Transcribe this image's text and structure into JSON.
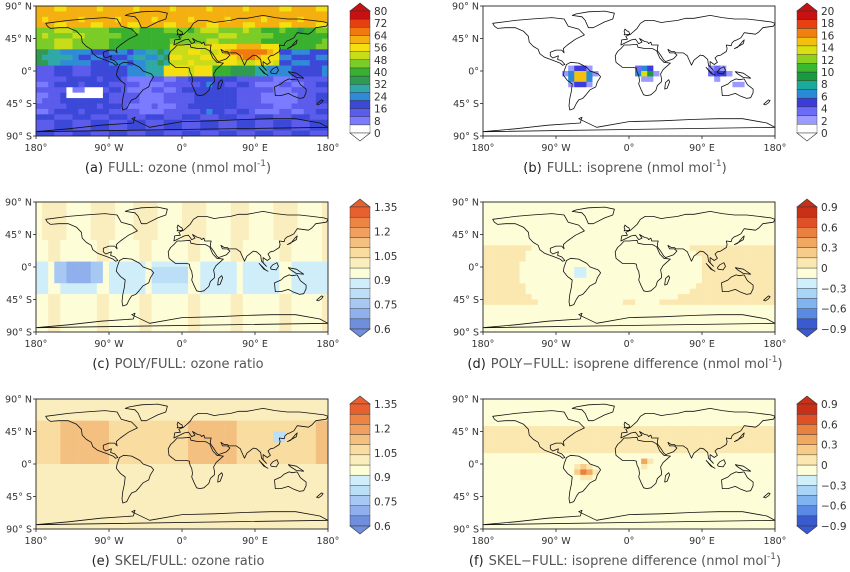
{
  "axes": {
    "lat_ticks": [
      "90° N",
      "45° N",
      "0°",
      "45° S",
      "90° S"
    ],
    "lon_ticks": [
      "180°",
      "90° W",
      "0°",
      "90° E",
      "180°"
    ]
  },
  "colors": {
    "ozone_scale": [
      "#ffffff",
      "#7b7bff",
      "#5b5bec",
      "#3c48d8",
      "#2f8ad8",
      "#2fa8a8",
      "#2f9a50",
      "#3ab030",
      "#7ccc28",
      "#c8dc18",
      "#f4e010",
      "#f4b010",
      "#f07a10",
      "#e64010",
      "#c81010"
    ],
    "isoprene_scale": [
      "#ffffff",
      "#9a9aff",
      "#6b6bf5",
      "#3c3cdc",
      "#2a8ad8",
      "#1aaa9a",
      "#1a9a40",
      "#3ab830",
      "#8cd020",
      "#d8e010",
      "#f4c010",
      "#f08010",
      "#e84010",
      "#c81010"
    ],
    "ratio_scale": [
      "#6f8fdc",
      "#8fb0ec",
      "#a8c8f4",
      "#bcdff8",
      "#cfeefa",
      "#fdfdd8",
      "#fbeebe",
      "#f8dca0",
      "#f4c080",
      "#f0a060",
      "#ec8444",
      "#e86030"
    ],
    "diff_scale": [
      "#3a5ad0",
      "#5a8ae4",
      "#80b4f0",
      "#a8d4f8",
      "#cff0fa",
      "#fdfdd8",
      "#fbe8b0",
      "#f6cc88",
      "#f0a860",
      "#e88040",
      "#e05028",
      "#c83018"
    ]
  },
  "chart_data": [
    {
      "id": "a",
      "type": "heatmap",
      "caption_letter": "(a)",
      "caption_text": "FULL: ozone (nmol mol",
      "caption_sup": "-1",
      "caption_end": ")",
      "scale": "ozone_scale",
      "colorbar_ticks": [
        "80",
        "72",
        "64",
        "56",
        "48",
        "40",
        "32",
        "24",
        "16",
        "8",
        "0"
      ],
      "colorbar_range": [
        0,
        80
      ]
    },
    {
      "id": "b",
      "type": "heatmap",
      "caption_letter": "(b)",
      "caption_text": "FULL: isoprene (nmol mol",
      "caption_sup": "-1",
      "caption_end": ")",
      "scale": "isoprene_scale",
      "colorbar_ticks": [
        "20",
        "18",
        "16",
        "14",
        "12",
        "10",
        "8",
        "6",
        "4",
        "2",
        "0"
      ],
      "colorbar_range": [
        0,
        20
      ]
    },
    {
      "id": "c",
      "type": "heatmap",
      "caption_letter": "(c)",
      "caption_text": "POLY/FULL: ozone ratio",
      "caption_sup": "",
      "caption_end": "",
      "scale": "ratio_scale",
      "colorbar_ticks": [
        "1.35",
        "1.2",
        "1.05",
        "0.9",
        "0.75",
        "0.6"
      ],
      "colorbar_range": [
        0.6,
        1.4
      ]
    },
    {
      "id": "d",
      "type": "heatmap",
      "caption_letter": "(d)",
      "caption_text": "POLY−FULL: isoprene difference (nmol mol",
      "caption_sup": "-1",
      "caption_end": ")",
      "scale": "diff_scale",
      "colorbar_ticks": [
        "0.9",
        "0.6",
        "0.3",
        "0",
        "−0.3",
        "−0.6",
        "−0.9"
      ],
      "colorbar_range": [
        -0.9,
        0.9
      ]
    },
    {
      "id": "e",
      "type": "heatmap",
      "caption_letter": "(e)",
      "caption_text": "SKEL/FULL: ozone ratio",
      "caption_sup": "",
      "caption_end": "",
      "scale": "ratio_scale",
      "colorbar_ticks": [
        "1.35",
        "1.2",
        "1.05",
        "0.9",
        "0.75",
        "0.6"
      ],
      "colorbar_range": [
        0.6,
        1.4
      ]
    },
    {
      "id": "f",
      "type": "heatmap",
      "caption_letter": "(f)",
      "caption_text": "SKEL−FULL: isoprene difference (nmol mol",
      "caption_sup": "-1",
      "caption_end": ")",
      "scale": "diff_scale",
      "colorbar_ticks": [
        "0.9",
        "0.6",
        "0.3",
        "0",
        "−0.3",
        "−0.6",
        "−0.9"
      ],
      "colorbar_range": [
        -0.9,
        0.9
      ]
    }
  ]
}
